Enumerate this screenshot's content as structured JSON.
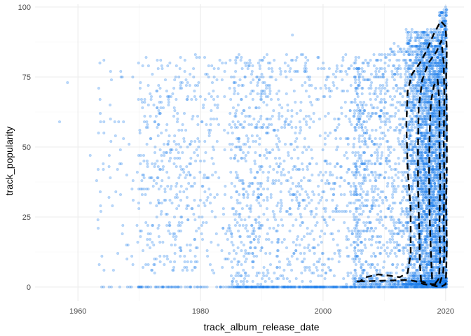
{
  "chart_data": {
    "type": "scatter",
    "title": "",
    "xlabel": "track_album_release_date",
    "ylabel": "track_popularity",
    "xlim": [
      1953,
      2023
    ],
    "ylim": [
      -5,
      101
    ],
    "x_ticks": [
      1960,
      1980,
      2000,
      2020
    ],
    "x_tick_labels": [
      "1960",
      "1980",
      "2000",
      "2020"
    ],
    "y_ticks": [
      0,
      25,
      50,
      75,
      100
    ],
    "y_tick_labels": [
      "0",
      "25",
      "50",
      "75",
      "100"
    ],
    "grid": true,
    "point_color": "#1E7FEB",
    "point_alpha": 0.3,
    "contour_color": "#000000",
    "contour_style": "dashed",
    "notable_points": [
      {
        "x": 1957.0,
        "y": 59
      },
      {
        "x": 1958.3,
        "y": 73
      },
      {
        "x": 1962.0,
        "y": 47
      },
      {
        "x": 1963.4,
        "y": 71
      },
      {
        "x": 1963.7,
        "y": 59
      },
      {
        "x": 1995.0,
        "y": 90
      },
      {
        "x": 2020.0,
        "y": 100
      }
    ],
    "density_description": "points become denser over time; densest region 2013-2020 across 0-95 popularity; many zero-popularity tracks after 1985",
    "contours": [
      {
        "name": "outer",
        "points": [
          [
            2005.5,
            2
          ],
          [
            2006,
            2
          ],
          [
            2007,
            3.5
          ],
          [
            2009,
            4.5
          ],
          [
            2011,
            4
          ],
          [
            2012.5,
            3.5
          ],
          [
            2013.8,
            5
          ],
          [
            2014.3,
            12
          ],
          [
            2014.3,
            28
          ],
          [
            2013.8,
            42
          ],
          [
            2013.6,
            58
          ],
          [
            2013.8,
            70
          ],
          [
            2014.5,
            76
          ],
          [
            2015.8,
            80
          ],
          [
            2016.8,
            84
          ],
          [
            2018.0,
            90
          ],
          [
            2019.2,
            95
          ],
          [
            2020.0,
            93
          ],
          [
            2020.2,
            85
          ],
          [
            2020.1,
            75
          ],
          [
            2020.2,
            60
          ],
          [
            2020.2,
            45
          ],
          [
            2020.1,
            30
          ],
          [
            2020.2,
            15
          ],
          [
            2020.1,
            5
          ],
          [
            2020.0,
            1
          ],
          [
            2019.2,
            0
          ],
          [
            2018.0,
            0.5
          ],
          [
            2016.5,
            1
          ],
          [
            2015.2,
            2
          ],
          [
            2014.0,
            2.5
          ]
        ]
      },
      {
        "name": "middle",
        "points": [
          [
            2016.0,
            2
          ],
          [
            2015.8,
            8
          ],
          [
            2015.7,
            20
          ],
          [
            2015.5,
            35
          ],
          [
            2015.5,
            50
          ],
          [
            2015.6,
            64
          ],
          [
            2016.2,
            74
          ],
          [
            2017.2,
            80
          ],
          [
            2018.5,
            84
          ],
          [
            2019.3,
            88
          ],
          [
            2019.7,
            80
          ],
          [
            2019.8,
            68
          ],
          [
            2019.7,
            52
          ],
          [
            2019.8,
            38
          ],
          [
            2019.7,
            24
          ],
          [
            2019.8,
            12
          ],
          [
            2019.6,
            5
          ],
          [
            2019.0,
            1
          ],
          [
            2017.8,
            1
          ],
          [
            2016.8,
            1.5
          ]
        ]
      },
      {
        "name": "inner",
        "points": [
          [
            2017.8,
            3
          ],
          [
            2017.6,
            12
          ],
          [
            2017.4,
            25
          ],
          [
            2017.3,
            40
          ],
          [
            2017.4,
            55
          ],
          [
            2017.6,
            66
          ],
          [
            2018.1,
            72
          ],
          [
            2018.7,
            74
          ],
          [
            2019.0,
            66
          ],
          [
            2019.0,
            52
          ],
          [
            2019.1,
            38
          ],
          [
            2019.0,
            22
          ],
          [
            2019.1,
            10
          ],
          [
            2018.9,
            3
          ],
          [
            2018.4,
            1.5
          ]
        ]
      }
    ]
  }
}
